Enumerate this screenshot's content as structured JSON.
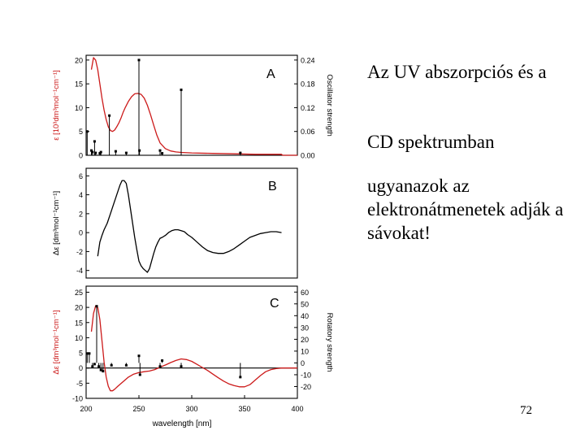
{
  "slide": {
    "bullets": [
      "Az UV abszorpciós és a",
      "CD spektrumban",
      "ugyanazok az elektronátmenetek adják a sávokat!"
    ],
    "page_number": "72"
  },
  "chart_data": [
    {
      "type": "line",
      "panel_label": "A",
      "xlim": [
        200,
        400
      ],
      "ylabel": "ε [10³dm³mol⁻¹cm⁻¹]",
      "ylim": [
        0,
        21
      ],
      "yticks": [
        0,
        5,
        10,
        15,
        20
      ],
      "y2label": "Oscillator strength",
      "y2lim": [
        0,
        0.252
      ],
      "y2ticks": [
        "0.00",
        "0.06",
        "0.12",
        "0.18",
        "0.24"
      ],
      "colors": {
        "spectrum": "#cc1a1a",
        "sticks": "#000000"
      },
      "series": [
        {
          "x": [
            205,
            207,
            209,
            211,
            213,
            215,
            217,
            219,
            221,
            223,
            225,
            227,
            229,
            231,
            233,
            235,
            237,
            240,
            243,
            246,
            249,
            252,
            255,
            258,
            261,
            264,
            267,
            270,
            275,
            280,
            285,
            290,
            300,
            320,
            340,
            360,
            380,
            385,
            386,
            400
          ],
          "y": [
            18,
            20.5,
            20,
            18,
            15,
            12,
            9.5,
            7.5,
            6,
            5.2,
            5,
            5.3,
            6,
            6.8,
            7.8,
            9,
            10,
            11.3,
            12.3,
            12.9,
            13,
            12.8,
            12,
            10.5,
            8.5,
            6.3,
            4.2,
            2.6,
            1.4,
            0.9,
            0.7,
            0.6,
            0.5,
            0.4,
            0.3,
            0.2,
            0.2,
            0.2,
            0,
            0
          ]
        }
      ],
      "sticks": [
        {
          "x": 201,
          "y": 0.06
        },
        {
          "x": 205,
          "y": 0.012
        },
        {
          "x": 206,
          "y": 0.008
        },
        {
          "x": 208,
          "y": 0.035
        },
        {
          "x": 209,
          "y": 0.006
        },
        {
          "x": 213,
          "y": 0.005
        },
        {
          "x": 214,
          "y": 0.008
        },
        {
          "x": 222,
          "y": 0.1
        },
        {
          "x": 228,
          "y": 0.01
        },
        {
          "x": 238,
          "y": 0.006
        },
        {
          "x": 250,
          "y": 0.24
        },
        {
          "x": 250.5,
          "y": 0.012
        },
        {
          "x": 270,
          "y": 0.012
        },
        {
          "x": 272,
          "y": 0.005
        },
        {
          "x": 290,
          "y": 0.165
        },
        {
          "x": 346,
          "y": 0.006
        }
      ]
    },
    {
      "type": "line",
      "panel_label": "B",
      "xlim": [
        200,
        400
      ],
      "ylabel": "Δε [dm³mol⁻¹cm⁻¹]",
      "ylim": [
        -4.8,
        6.8
      ],
      "yticks": [
        -4,
        -2,
        0,
        2,
        4,
        6
      ],
      "colors": {
        "spectrum": "#000000"
      },
      "series": [
        {
          "x": [
            211,
            213,
            215,
            217,
            220,
            223,
            226,
            229,
            232,
            234,
            236,
            238,
            240,
            242,
            244,
            246,
            248,
            250,
            252,
            254,
            256,
            258,
            260,
            262,
            264,
            266,
            268,
            270,
            272,
            275,
            278,
            281,
            284,
            287,
            290,
            293,
            296,
            300,
            305,
            310,
            315,
            320,
            325,
            330,
            335,
            340,
            345,
            350,
            355,
            360,
            365,
            370,
            375,
            380,
            385
          ],
          "y": [
            -2.5,
            -1,
            -0.3,
            0.3,
            1,
            2,
            3,
            4,
            5,
            5.5,
            5.5,
            5.2,
            4,
            2.5,
            1,
            -0.5,
            -1.8,
            -3,
            -3.5,
            -3.8,
            -4,
            -4.2,
            -3.8,
            -3,
            -2.2,
            -1.5,
            -1,
            -0.6,
            -0.5,
            -0.3,
            0,
            0.2,
            0.3,
            0.3,
            0.2,
            0.1,
            -0.2,
            -0.5,
            -1,
            -1.5,
            -1.9,
            -2.1,
            -2.2,
            -2.2,
            -2,
            -1.7,
            -1.3,
            -0.9,
            -0.5,
            -0.3,
            -0.1,
            0,
            0.1,
            0.1,
            0
          ]
        }
      ]
    },
    {
      "type": "line",
      "panel_label": "C",
      "xlabel": "wavelength [nm]",
      "xlim": [
        200,
        400
      ],
      "xticks": [
        200,
        250,
        300,
        350,
        400
      ],
      "ylabel": "Δε [dm³mol⁻¹cm⁻¹]",
      "ylim": [
        -10,
        27
      ],
      "yticks": [
        -10,
        -5,
        0,
        5,
        10,
        15,
        20,
        25
      ],
      "y2label": "Rotatory strength",
      "y2lim": [
        -30,
        65
      ],
      "y2ticks": [
        -20,
        -10,
        0,
        10,
        20,
        30,
        40,
        50,
        60
      ],
      "colors": {
        "spectrum": "#cc1a1a",
        "sticks": "#000000"
      },
      "series": [
        {
          "x": [
            205,
            207,
            209,
            211,
            213,
            215,
            217,
            219,
            221,
            223,
            225,
            227,
            230,
            235,
            240,
            245,
            250,
            255,
            260,
            265,
            270,
            275,
            280,
            285,
            290,
            295,
            300,
            305,
            310,
            315,
            320,
            325,
            330,
            335,
            340,
            345,
            350,
            355,
            360,
            365,
            370,
            375,
            380,
            385,
            390,
            395,
            400
          ],
          "y": [
            12,
            18,
            20.5,
            20,
            16,
            9,
            2,
            -3,
            -6,
            -7.5,
            -7.5,
            -7,
            -6,
            -4.5,
            -3,
            -2,
            -1.5,
            -1.2,
            -1,
            -0.5,
            0.3,
            1,
            1.8,
            2.5,
            3,
            2.8,
            2.2,
            1.2,
            0.2,
            -0.8,
            -2,
            -3.2,
            -4.3,
            -5.2,
            -5.8,
            -6.2,
            -6.2,
            -5.5,
            -4,
            -2.5,
            -1.2,
            -0.5,
            -0.2,
            0,
            0,
            0,
            0
          ]
        }
      ],
      "sticks": [
        {
          "x": 201,
          "y": 8
        },
        {
          "x": 203,
          "y": 8
        },
        {
          "x": 206,
          "y": -3
        },
        {
          "x": 208,
          "y": -1
        },
        {
          "x": 210,
          "y": 48
        },
        {
          "x": 212,
          "y": -3
        },
        {
          "x": 214,
          "y": -6
        },
        {
          "x": 216,
          "y": -7
        },
        {
          "x": 224,
          "y": -2
        },
        {
          "x": 238,
          "y": -2
        },
        {
          "x": 250,
          "y": 6
        },
        {
          "x": 251,
          "y": -10
        },
        {
          "x": 270,
          "y": -3
        },
        {
          "x": 272,
          "y": 2
        },
        {
          "x": 290,
          "y": -3
        },
        {
          "x": 346,
          "y": -12
        }
      ]
    }
  ]
}
